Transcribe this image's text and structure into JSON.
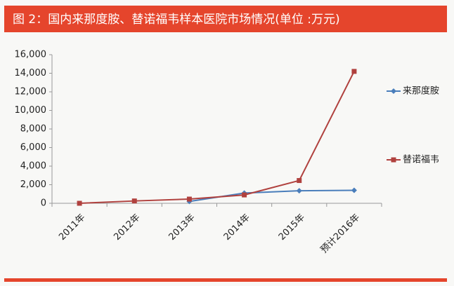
{
  "chart_data": {
    "type": "line",
    "title": "图 2：国内来那度胺、替诺福韦样本医院市场情况(单位 :万元)",
    "categories": [
      "2011年",
      "2012年",
      "2013年",
      "2014年",
      "2015年",
      "预计2016年"
    ],
    "series": [
      {
        "name": "来那度胺",
        "color": "#4a7ebb",
        "marker": "diamond",
        "values": [
          null,
          null,
          200,
          1100,
          1350,
          1400
        ]
      },
      {
        "name": "替诺福韦",
        "color": "#b0413e",
        "marker": "square",
        "values": [
          0,
          250,
          450,
          900,
          2450,
          14200
        ]
      }
    ],
    "ylim": [
      0,
      16000
    ],
    "yticks": [
      0,
      {
        "value": 2000,
        "label": "2,000"
      },
      {
        "value": 4000,
        "label": "4,000"
      },
      {
        "value": 6000,
        "label": "6,000"
      },
      {
        "value": 8000,
        "label": "8,000"
      },
      {
        "value": 10000,
        "label": "10,000"
      },
      {
        "value": 12000,
        "label": "12,000"
      },
      {
        "value": 14000,
        "label": "14,000"
      },
      {
        "value": 16000,
        "label": "16,000"
      }
    ],
    "grid": false
  }
}
